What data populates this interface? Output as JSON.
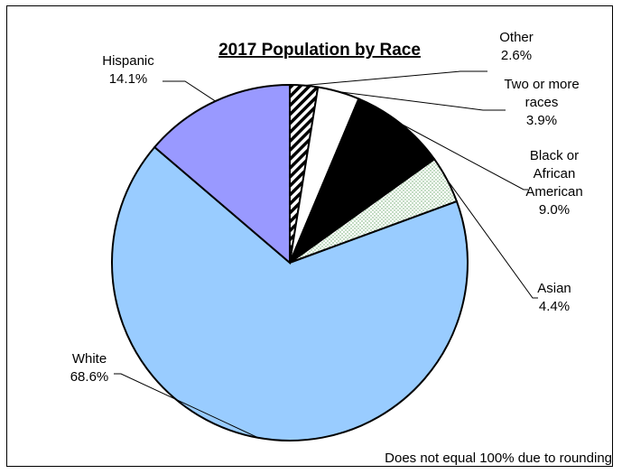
{
  "chart_data": {
    "type": "pie",
    "title": "2017 Population by Race",
    "note": "Does not equal 100% due to rounding",
    "slices": [
      {
        "label": "Other",
        "value": 2.6,
        "value_label": "2.6%",
        "fill": "hatch",
        "color": "#000000"
      },
      {
        "label": "Two or more races",
        "value": 3.9,
        "value_label": "3.9%",
        "fill": "solid",
        "color": "#ffffff"
      },
      {
        "label": "Black or African American",
        "value": 9.0,
        "value_label": "9.0%",
        "fill": "solid",
        "color": "#000000"
      },
      {
        "label": "Asian",
        "value": 4.4,
        "value_label": "4.4%",
        "fill": "dots",
        "color": "#6aa86a"
      },
      {
        "label": "White",
        "value": 68.6,
        "value_label": "68.6%",
        "fill": "solid",
        "color": "#99ccff"
      },
      {
        "label": "Hispanic",
        "value": 14.1,
        "value_label": "14.1%",
        "fill": "solid",
        "color": "#9999ff"
      }
    ],
    "label_lines": [
      [
        "Other",
        "2.6%"
      ],
      [
        "Two or more",
        "races",
        "3.9%"
      ],
      [
        "Black or",
        "African",
        "American",
        "9.0%"
      ],
      [
        "Asian",
        "4.4%"
      ],
      [
        "White",
        "68.6%"
      ],
      [
        "Hispanic",
        "14.1%"
      ]
    ]
  }
}
